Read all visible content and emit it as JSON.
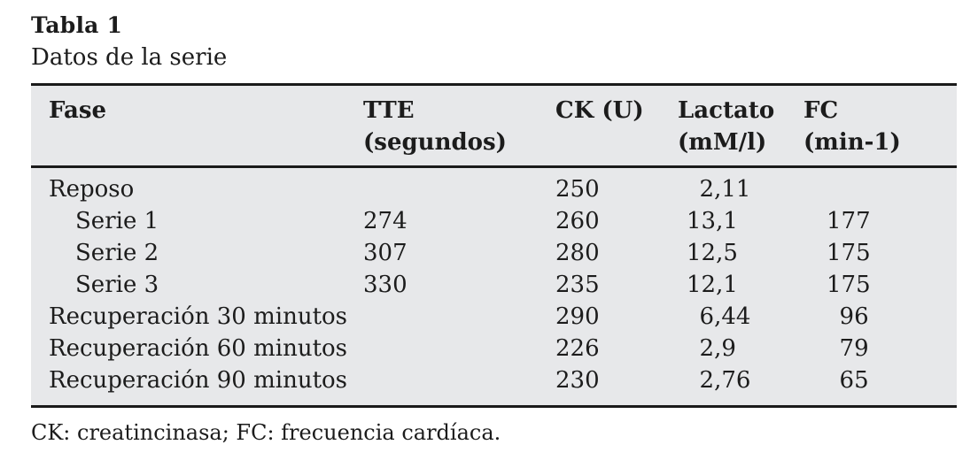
{
  "title": "Tabla 1",
  "subtitle": "Datos de la serie",
  "table": {
    "columns": [
      {
        "label": "Fase",
        "sub": ""
      },
      {
        "label": "TTE",
        "sub": "(segundos)"
      },
      {
        "label": "CK (U)",
        "sub": ""
      },
      {
        "label": "Lactato",
        "sub": "(mM/l)"
      },
      {
        "label": "FC",
        "sub": "(min-1)"
      }
    ],
    "rows": [
      {
        "fase": "Reposo",
        "indent": false,
        "values": [
          "",
          "250",
          "2,11",
          ""
        ]
      },
      {
        "fase": "Serie 1",
        "indent": true,
        "values": [
          "274",
          "260",
          "13,1",
          "177"
        ]
      },
      {
        "fase": "Serie 2",
        "indent": true,
        "values": [
          "307",
          "280",
          "12,5",
          "175"
        ]
      },
      {
        "fase": "Serie 3",
        "indent": true,
        "values": [
          "330",
          "235",
          "12,1",
          "175"
        ]
      },
      {
        "fase": "Recuperación 30 minutos",
        "indent": false,
        "values": [
          "",
          "290",
          "6,44",
          "96"
        ]
      },
      {
        "fase": "Recuperación 60 minutos",
        "indent": false,
        "values": [
          "",
          "226",
          "2,9",
          "79"
        ]
      },
      {
        "fase": "Recuperación 90 minutos",
        "indent": false,
        "values": [
          "",
          "230",
          "2,76",
          "65"
        ]
      }
    ]
  },
  "footnote": "CK: creatincinasa; FC: frecuencia cardíaca.",
  "colors": {
    "table_background": "#e7e8ea",
    "rule": "#1a1a1a",
    "text": "#1c1c1c",
    "page_background": "#ffffff"
  }
}
